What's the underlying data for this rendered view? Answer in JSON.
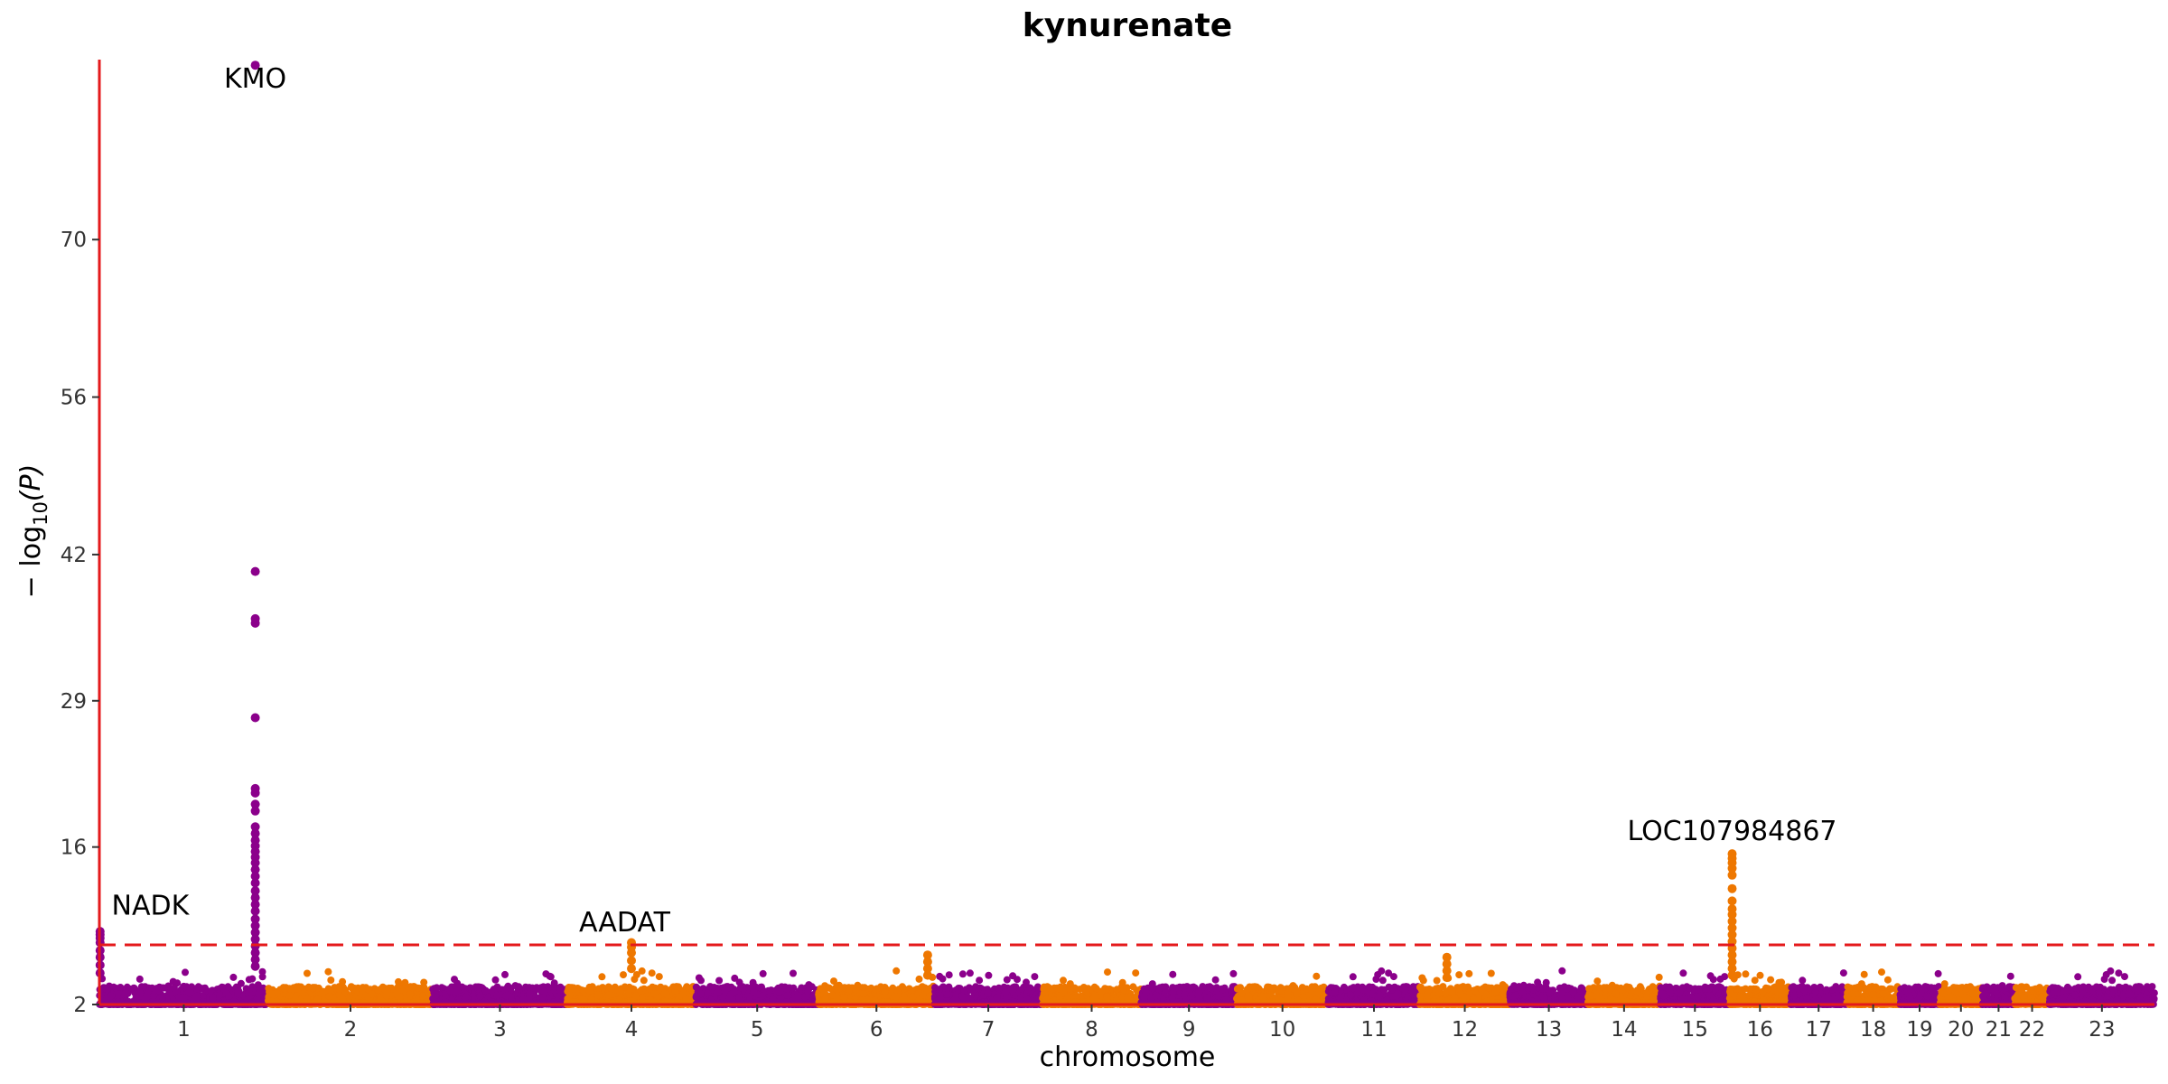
{
  "chart_data": {
    "type": "scatter",
    "title": "kynurenate",
    "xlabel": "chromosome",
    "ylabel_main": "− log",
    "ylabel_sub": "10",
    "ylabel_arg": "(P)",
    "ylim": [
      2,
      86
    ],
    "y_ticks": [
      2,
      16,
      29,
      42,
      56,
      70
    ],
    "significance_threshold": 7.3,
    "colors": {
      "odd": "#8B008B",
      "even": "#EE7700",
      "axis": "#E41A1C",
      "threshold": "#E41A1C"
    },
    "grid": false,
    "legend": "none",
    "chromosomes": [
      {
        "name": "1",
        "size": 249
      },
      {
        "name": "2",
        "size": 243
      },
      {
        "name": "3",
        "size": 198
      },
      {
        "name": "4",
        "size": 190
      },
      {
        "name": "5",
        "size": 181
      },
      {
        "name": "6",
        "size": 171
      },
      {
        "name": "7",
        "size": 159
      },
      {
        "name": "8",
        "size": 146
      },
      {
        "name": "9",
        "size": 141
      },
      {
        "name": "10",
        "size": 135
      },
      {
        "name": "11",
        "size": 135
      },
      {
        "name": "12",
        "size": 133
      },
      {
        "name": "13",
        "size": 115
      },
      {
        "name": "14",
        "size": 107
      },
      {
        "name": "15",
        "size": 102
      },
      {
        "name": "16",
        "size": 90
      },
      {
        "name": "17",
        "size": 83
      },
      {
        "name": "18",
        "size": 78
      },
      {
        "name": "19",
        "size": 59
      },
      {
        "name": "20",
        "size": 63
      },
      {
        "name": "21",
        "size": 48
      },
      {
        "name": "22",
        "size": 51
      },
      {
        "name": "23",
        "size": 155
      }
    ],
    "peaks": [
      {
        "chrom": "1",
        "pos": 1,
        "values": [
          8.5,
          8.2,
          7.9,
          7.5,
          6.8,
          6.2,
          5.5,
          4.8
        ]
      },
      {
        "chrom": "1",
        "pos": 230,
        "values": [
          85.5,
          40.5,
          36.3,
          35.9,
          27.5,
          21.2,
          20.8,
          19.8,
          19.2,
          17.8,
          17.2,
          16.6,
          16.1,
          15.6,
          15.1,
          14.6,
          14.0,
          13.4,
          12.8,
          12.1,
          11.5,
          10.9,
          10.3,
          9.6,
          9.0,
          8.4,
          7.8,
          7.2,
          6.6,
          6.0,
          5.4
        ]
      },
      {
        "chrom": "4",
        "pos": 95,
        "values": [
          7.5,
          7.1,
          6.6,
          5.9,
          5.2
        ]
      },
      {
        "chrom": "6",
        "pos": 161,
        "values": [
          6.4,
          5.8,
          5.2,
          4.6
        ]
      },
      {
        "chrom": "12",
        "pos": 40,
        "values": [
          6.2,
          5.6,
          5.0,
          4.4
        ]
      },
      {
        "chrom": "16",
        "pos": 4,
        "values": [
          15.4,
          15.0,
          14.6,
          14.1,
          13.5,
          12.3,
          11.2,
          10.5,
          10.0,
          9.4,
          8.8,
          8.2,
          7.6,
          7.0,
          6.4,
          5.8,
          5.2,
          4.6
        ]
      }
    ],
    "annotations": [
      {
        "text": "KMO",
        "chrom": "1",
        "pos": 230,
        "y": 83.5
      },
      {
        "text": "NADK",
        "chrom": "1",
        "pos": 18,
        "y": 10.0
      },
      {
        "text": "AADAT",
        "chrom": "4",
        "pos": 85,
        "y": 8.5
      },
      {
        "text": "LOC107984867",
        "chrom": "16",
        "pos": 4,
        "y": 16.6
      }
    ]
  }
}
